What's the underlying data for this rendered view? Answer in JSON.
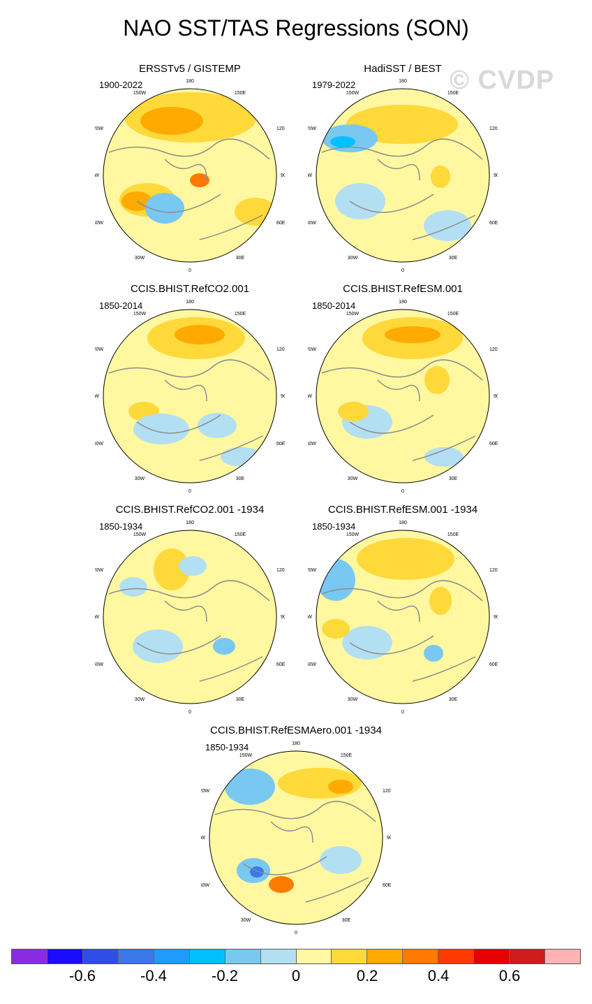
{
  "title": "NAO SST/TAS Regressions (SON)",
  "watermark": "© CVDP",
  "lon_labels": {
    "top": "180",
    "tr": "150E",
    "tl": "150W",
    "rt": "120E",
    "lt": "120W",
    "r": "90E",
    "l": "90W",
    "rb": "60E",
    "lb": "60W",
    "br": "30E",
    "bl": "30W",
    "bottom": "0"
  },
  "panels": [
    {
      "name": "ERSSTv5 / GISTEMP",
      "period": "1900-2022"
    },
    {
      "name": "HadiSST / BEST",
      "period": "1979-2022"
    },
    {
      "name": "CCIS.BHIST.RefCO2.001",
      "period": "1850-2014"
    },
    {
      "name": "CCIS.BHIST.RefESM.001",
      "period": "1850-2014"
    },
    {
      "name": "CCIS.BHIST.RefCO2.001 -1934",
      "period": "1850-1934"
    },
    {
      "name": "CCIS.BHIST.RefESM.001 -1934",
      "period": "1850-1934"
    },
    {
      "name": "CCIS.BHIST.RefESMAero.001 -1934",
      "period": "1850-1934"
    }
  ],
  "colorbar": {
    "colors": [
      "#8a2be2",
      "#1a0dff",
      "#2e4ee6",
      "#3a78e8",
      "#1f9bff",
      "#00c0ff",
      "#79c8f2",
      "#b3dff2",
      "#fff8a0",
      "#ffd83a",
      "#ffaa00",
      "#ff7a00",
      "#ff3a00",
      "#e60000",
      "#cf1c1c",
      "#ffb3b3"
    ],
    "labels": [
      "-0.6",
      "-0.4",
      "-0.2",
      "0",
      "0.2",
      "0.4",
      "0.6"
    ]
  }
}
